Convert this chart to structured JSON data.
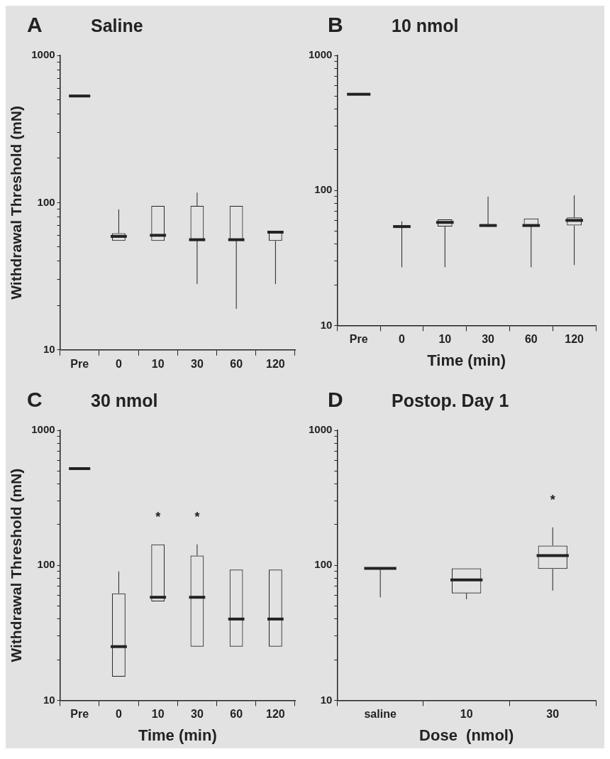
{
  "chart_data": [
    {
      "type": "box",
      "title": "A",
      "subtitle": "Saline",
      "ylabel": "Withdrawal Threshold (mN)",
      "categories": [
        "Pre",
        "0",
        "10",
        "30",
        "60",
        "120"
      ],
      "log": "y",
      "grid": false,
      "ylim": [
        10,
        1000
      ],
      "yticks": [
        10,
        {
          "value": 20,
          "label": null
        },
        {
          "value": 30,
          "label": null
        },
        {
          "value": 40,
          "label": null
        },
        {
          "value": 50,
          "label": null
        },
        {
          "value": 60,
          "label": null
        },
        {
          "value": 70,
          "label": null
        },
        {
          "value": 80,
          "label": null
        },
        {
          "value": 90,
          "label": null
        },
        100,
        {
          "value": 200,
          "label": null
        },
        {
          "value": 300,
          "label": null
        },
        {
          "value": 400,
          "label": null
        },
        {
          "value": 500,
          "label": null
        },
        {
          "value": 600,
          "label": null
        },
        {
          "value": 700,
          "label": null
        },
        {
          "value": 800,
          "label": null
        },
        {
          "value": 900,
          "label": null
        },
        1000
      ],
      "boxes": [
        {
          "low": 530,
          "q1": 530,
          "median": 530,
          "q3": 530,
          "high": 530
        },
        {
          "low": 55,
          "q1": 55,
          "median": 59,
          "q3": 62,
          "high": 90
        },
        {
          "low": 55,
          "q1": 55,
          "median": 60,
          "q3": 95,
          "high": 95
        },
        {
          "low": 28,
          "q1": 56,
          "median": 56,
          "q3": 95,
          "high": 117
        },
        {
          "low": 19,
          "q1": 56,
          "median": 56,
          "q3": 95,
          "high": 95
        },
        {
          "low": 28,
          "q1": 55,
          "median": 63,
          "q3": 64,
          "high": 64
        }
      ]
    },
    {
      "type": "box",
      "title": "B",
      "subtitle": "10 nmol",
      "xlabel": "Time (min)",
      "categories": [
        "Pre",
        "0",
        "10",
        "30",
        "60",
        "120"
      ],
      "log": "y",
      "grid": false,
      "ylim": [
        10,
        1000
      ],
      "yticks": [
        10,
        {
          "value": 20,
          "label": null
        },
        {
          "value": 30,
          "label": null
        },
        {
          "value": 40,
          "label": null
        },
        {
          "value": 50,
          "label": null
        },
        {
          "value": 60,
          "label": null
        },
        {
          "value": 70,
          "label": null
        },
        {
          "value": 80,
          "label": null
        },
        {
          "value": 90,
          "label": null
        },
        100,
        {
          "value": 200,
          "label": null
        },
        {
          "value": 300,
          "label": null
        },
        {
          "value": 400,
          "label": null
        },
        {
          "value": 500,
          "label": null
        },
        {
          "value": 600,
          "label": null
        },
        {
          "value": 700,
          "label": null
        },
        {
          "value": 800,
          "label": null
        },
        {
          "value": 900,
          "label": null
        },
        1000
      ],
      "boxes": [
        {
          "low": 515,
          "q1": 515,
          "median": 515,
          "q3": 515,
          "high": 515
        },
        {
          "low": 27,
          "q1": 54,
          "median": 54,
          "q3": 55,
          "high": 59
        },
        {
          "low": 27,
          "q1": 54,
          "median": 58,
          "q3": 61,
          "high": 61
        },
        {
          "low": 55,
          "q1": 55,
          "median": 55,
          "q3": 55,
          "high": 90
        },
        {
          "low": 27,
          "q1": 55,
          "median": 55,
          "q3": 62,
          "high": 62
        },
        {
          "low": 28,
          "q1": 55,
          "median": 60,
          "q3": 63,
          "high": 92
        }
      ]
    },
    {
      "type": "box",
      "title": "C",
      "subtitle": "30 nmol",
      "xlabel": "Time (min)",
      "ylabel": "Withdrawal Threshold (mN)",
      "categories": [
        "Pre",
        "0",
        "10",
        "30",
        "60",
        "120"
      ],
      "log": "y",
      "grid": false,
      "ylim": [
        10,
        1000
      ],
      "yticks": [
        10,
        {
          "value": 20,
          "label": null
        },
        {
          "value": 30,
          "label": null
        },
        {
          "value": 40,
          "label": null
        },
        {
          "value": 50,
          "label": null
        },
        {
          "value": 60,
          "label": null
        },
        {
          "value": 70,
          "label": null
        },
        {
          "value": 80,
          "label": null
        },
        {
          "value": 90,
          "label": null
        },
        100,
        {
          "value": 200,
          "label": null
        },
        {
          "value": 300,
          "label": null
        },
        {
          "value": 400,
          "label": null
        },
        {
          "value": 500,
          "label": null
        },
        {
          "value": 600,
          "label": null
        },
        {
          "value": 700,
          "label": null
        },
        {
          "value": 800,
          "label": null
        },
        {
          "value": 900,
          "label": null
        },
        1000
      ],
      "boxes": [
        {
          "low": 520,
          "q1": 520,
          "median": 520,
          "q3": 520,
          "high": 520
        },
        {
          "low": 15,
          "q1": 15,
          "median": 25,
          "q3": 62,
          "high": 90
        },
        {
          "low": 54,
          "q1": 54,
          "median": 58,
          "q3": 143,
          "high": 143
        },
        {
          "low": 25,
          "q1": 25,
          "median": 58,
          "q3": 118,
          "high": 143
        },
        {
          "low": 25,
          "q1": 25,
          "median": 40,
          "q3": 93,
          "high": 93
        },
        {
          "low": 25,
          "q1": 25,
          "median": 40,
          "q3": 93,
          "high": 93
        }
      ],
      "annotations": [
        {
          "text": "*",
          "x": "10",
          "y": 143
        },
        {
          "text": "*",
          "x": "30",
          "y": 143
        }
      ]
    },
    {
      "type": "box",
      "title": "D",
      "subtitle": "Postop. Day 1",
      "xlabel": "Dose  (nmol)",
      "categories": [
        "saline",
        "10",
        "30"
      ],
      "log": "y",
      "grid": false,
      "ylim": [
        10,
        1000
      ],
      "yticks": [
        10,
        {
          "value": 20,
          "label": null
        },
        {
          "value": 30,
          "label": null
        },
        {
          "value": 40,
          "label": null
        },
        {
          "value": 50,
          "label": null
        },
        {
          "value": 60,
          "label": null
        },
        {
          "value": 70,
          "label": null
        },
        {
          "value": 80,
          "label": null
        },
        {
          "value": 90,
          "label": null
        },
        100,
        {
          "value": 200,
          "label": null
        },
        {
          "value": 300,
          "label": null
        },
        {
          "value": 400,
          "label": null
        },
        {
          "value": 500,
          "label": null
        },
        {
          "value": 600,
          "label": null
        },
        {
          "value": 700,
          "label": null
        },
        {
          "value": 800,
          "label": null
        },
        {
          "value": 900,
          "label": null
        },
        1000
      ],
      "boxes": [
        {
          "low": 58,
          "q1": 95,
          "median": 95,
          "q3": 95,
          "high": 95
        },
        {
          "low": 56,
          "q1": 62,
          "median": 78,
          "q3": 95,
          "high": 95
        },
        {
          "low": 65,
          "q1": 94,
          "median": 118,
          "q3": 140,
          "high": 191
        }
      ],
      "annotations": [
        {
          "text": "*",
          "x": "30",
          "y": 191
        }
      ]
    }
  ]
}
